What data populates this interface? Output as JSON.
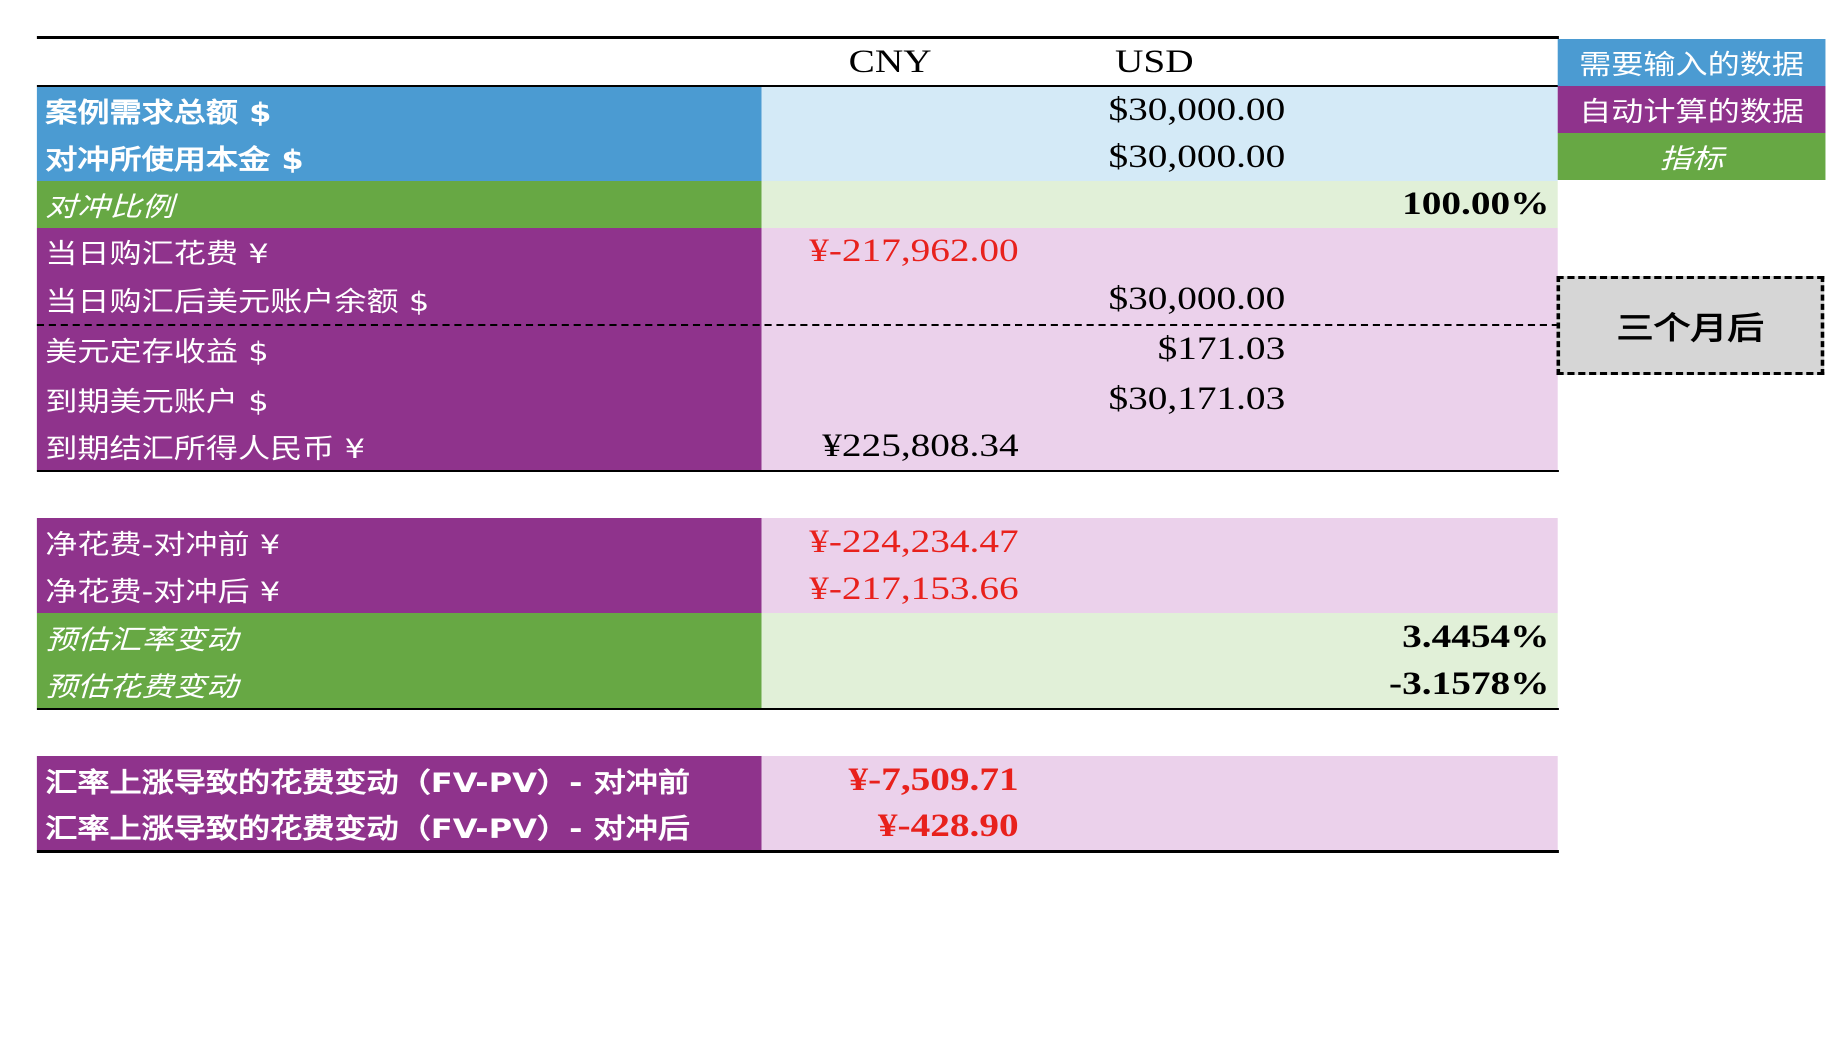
{
  "header": {
    "cny": "CNY",
    "usd": "USD"
  },
  "legend": {
    "input": "需要输入的数据",
    "auto": "自动计算的数据",
    "indicator": "指标",
    "three_months": "三个月后"
  },
  "rows": {
    "case_total": {
      "label": "案例需求总额 $",
      "usd": "$30,000.00"
    },
    "hedge_principal": {
      "label": "对冲所使用本金 $",
      "usd": "$30,000.00"
    },
    "hedge_ratio": {
      "label": "对冲比例",
      "pct": "100.00%"
    },
    "buy_cost": {
      "label": "当日购汇花费 ¥",
      "cny": "¥-217,962.00"
    },
    "usd_balance": {
      "label": "当日购汇后美元账户余额 $",
      "usd": "$30,000.00"
    },
    "deposit_gain": {
      "label": "美元定存收益 $",
      "usd": "$171.03"
    },
    "maturity_usd": {
      "label": "到期美元账户 $",
      "usd": "$30,171.03"
    },
    "maturity_cny": {
      "label": "到期结汇所得人民币 ¥",
      "cny": "¥225,808.34"
    },
    "net_before": {
      "label": "净花费-对冲前 ¥",
      "cny": "¥-224,234.47"
    },
    "net_after": {
      "label": "净花费-对冲后 ¥",
      "cny": "¥-217,153.66"
    },
    "fx_change": {
      "label": "预估汇率变动",
      "pct": "3.4454%"
    },
    "cost_change": {
      "label": "预估花费变动",
      "pct": "-3.1578%"
    },
    "fvpv_before": {
      "label": "汇率上涨导致的花费变动（FV-PV）- 对冲前",
      "cny": "¥-7,509.71"
    },
    "fvpv_after": {
      "label": "汇率上涨导致的花费变动（FV-PV）- 对冲后",
      "cny": "¥-428.90"
    }
  },
  "colors": {
    "blue_label": "#4b9bd2",
    "blue_value": "#d4eaf7",
    "green_label": "#67a844",
    "green_value": "#e1f0d8",
    "purple_label": "#8f338c",
    "purple_value": "#ebd1eb",
    "red_text": "#e8211c"
  }
}
